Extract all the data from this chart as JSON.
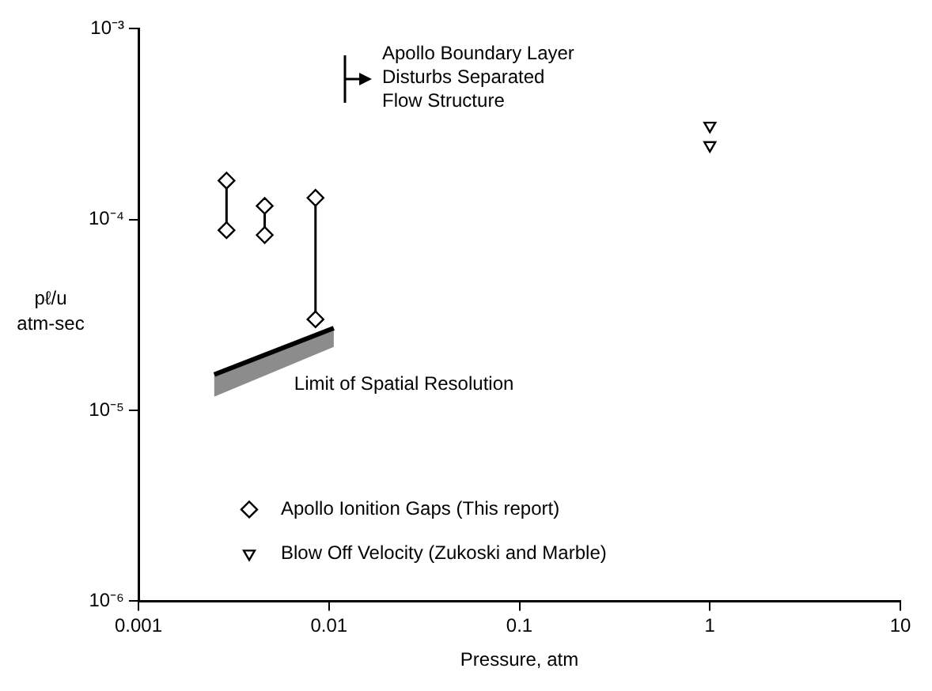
{
  "chart_data": {
    "type": "scatter",
    "xlabel": "Pressure, atm",
    "ylabel": "pℓ/u atm-sec",
    "log": "xy",
    "xlim": [
      0.001,
      10
    ],
    "xticks": [
      0.001,
      0.01,
      0.1,
      1,
      10
    ],
    "ylim": [
      1e-06,
      0.001
    ],
    "yticks": [
      {
        "value": 1e-06,
        "label": "10⁻⁶"
      },
      {
        "value": 1e-05,
        "label": "10⁻⁵"
      },
      {
        "value": 0.0001,
        "label": "10⁻⁴"
      },
      {
        "value": 0.001,
        "label": "10⁻³"
      }
    ],
    "grid": false,
    "legend": "bottom left",
    "series": [
      {
        "name": "Apollo Ionition Gaps (This report)",
        "type": "scatter",
        "marker": "diamond",
        "color": "#000000",
        "x": [
          0.0029,
          0.0029,
          0.0046,
          0.0046,
          0.0085,
          0.0085
        ],
        "values": [
          0.00016,
          8.8e-05,
          0.000118,
          8.3e-05,
          0.00013,
          3e-05
        ]
      },
      {
        "name": "Blow Off Velocity (Zukoski and Marble)",
        "type": "scatter",
        "marker": "triangle",
        "color": "#000000",
        "x": [
          1,
          1
        ],
        "values": [
          0.00031,
          0.000245
        ]
      },
      {
        "type": "line",
        "marker": "none",
        "color": "#000000",
        "x": [
          0.0029,
          0.0029
        ],
        "values": [
          0.00016,
          8.8e-05
        ]
      },
      {
        "type": "line",
        "marker": "none",
        "color": "#000000",
        "x": [
          0.0046,
          0.0046
        ],
        "values": [
          0.000118,
          8.3e-05
        ]
      },
      {
        "type": "line",
        "marker": "none",
        "color": "#000000",
        "x": [
          0.0085,
          0.0085
        ],
        "values": [
          0.00013,
          3e-05
        ]
      },
      {
        "name": "Limit of Spatial Resolution",
        "type": "line",
        "marker": "none",
        "color": "#000000",
        "x": [
          0.0025,
          0.0106
        ],
        "values": [
          1.54e-05,
          2.7e-05
        ],
        "lower": [
          1.18e-05,
          2.15e-05
        ],
        "upper": [
          1.54e-05,
          2.7e-05
        ]
      }
    ],
    "annotations": [
      "Apollo Boundary Layer\nDisturbs Separated\nFlow Structure"
    ]
  }
}
